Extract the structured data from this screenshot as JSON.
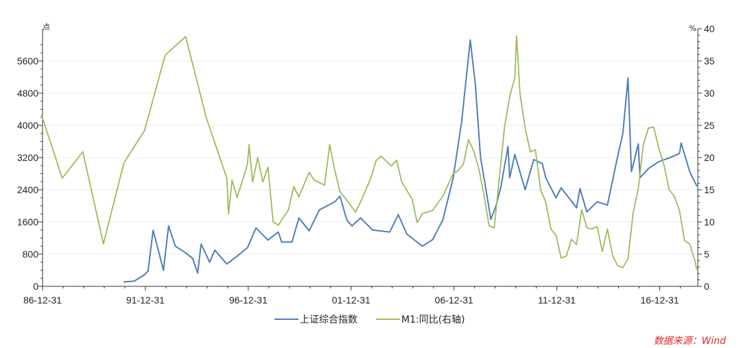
{
  "chart_data": {
    "type": "line",
    "x_axis": {
      "ticks": [
        "86-12-31",
        "91-12-31",
        "96-12-31",
        "01-12-31",
        "06-12-31",
        "11-12-31",
        "16-12-31"
      ]
    },
    "y_left": {
      "unit": "点",
      "range": [
        0,
        6400
      ],
      "ticks": [
        0,
        800,
        1600,
        2400,
        3200,
        4000,
        4800,
        5600
      ]
    },
    "y_right": {
      "unit": "%",
      "range": [
        0,
        40
      ],
      "ticks": [
        0,
        5,
        10,
        15,
        20,
        25,
        30,
        35,
        40
      ]
    },
    "grid": true,
    "legend_position": "bottom-center",
    "series": [
      {
        "name": "上证综合指数",
        "axis": "left",
        "color": "#4a7ebb",
        "points": [
          [
            "1990-12",
            110
          ],
          [
            "1991-06",
            130
          ],
          [
            "1991-12",
            290
          ],
          [
            "1992-02",
            380
          ],
          [
            "1992-05",
            1390
          ],
          [
            "1992-08",
            900
          ],
          [
            "1992-11",
            400
          ],
          [
            "1993-02",
            1500
          ],
          [
            "1993-06",
            1000
          ],
          [
            "1993-12",
            830
          ],
          [
            "1994-04",
            700
          ],
          [
            "1994-07",
            330
          ],
          [
            "1994-09",
            1050
          ],
          [
            "1995-02",
            600
          ],
          [
            "1995-05",
            900
          ],
          [
            "1995-12",
            555
          ],
          [
            "1996-06",
            750
          ],
          [
            "1996-12",
            960
          ],
          [
            "1997-05",
            1450
          ],
          [
            "1997-12",
            1150
          ],
          [
            "1998-06",
            1350
          ],
          [
            "1998-08",
            1100
          ],
          [
            "1999-02",
            1100
          ],
          [
            "1999-06",
            1700
          ],
          [
            "1999-12",
            1380
          ],
          [
            "2000-06",
            1900
          ],
          [
            "2001-03",
            2100
          ],
          [
            "2001-06",
            2240
          ],
          [
            "2001-10",
            1650
          ],
          [
            "2002-01",
            1500
          ],
          [
            "2002-06",
            1700
          ],
          [
            "2003-01",
            1400
          ],
          [
            "2003-11",
            1350
          ],
          [
            "2004-04",
            1780
          ],
          [
            "2004-09",
            1300
          ],
          [
            "2005-06",
            1000
          ],
          [
            "2005-12",
            1160
          ],
          [
            "2006-06",
            1650
          ],
          [
            "2006-12",
            2680
          ],
          [
            "2007-05",
            4100
          ],
          [
            "2007-10",
            6124
          ],
          [
            "2008-01",
            5000
          ],
          [
            "2008-04",
            3200
          ],
          [
            "2008-06",
            2700
          ],
          [
            "2008-10",
            1664
          ],
          [
            "2009-01",
            2000
          ],
          [
            "2009-04",
            2500
          ],
          [
            "2009-08",
            3478
          ],
          [
            "2009-09",
            2700
          ],
          [
            "2009-12",
            3280
          ],
          [
            "2010-06",
            2400
          ],
          [
            "2010-11",
            3150
          ],
          [
            "2011-04",
            3050
          ],
          [
            "2011-06",
            2700
          ],
          [
            "2011-12",
            2200
          ],
          [
            "2012-03",
            2450
          ],
          [
            "2012-12",
            1950
          ],
          [
            "2013-02",
            2430
          ],
          [
            "2013-06",
            1850
          ],
          [
            "2013-12",
            2100
          ],
          [
            "2014-06",
            2020
          ],
          [
            "2014-12",
            3234
          ],
          [
            "2015-03",
            3800
          ],
          [
            "2015-06",
            5178
          ],
          [
            "2015-08",
            2850
          ],
          [
            "2015-12",
            3540
          ],
          [
            "2016-01",
            2700
          ],
          [
            "2016-06",
            2930
          ],
          [
            "2016-12",
            3100
          ],
          [
            "2017-06",
            3190
          ],
          [
            "2017-12",
            3300
          ],
          [
            "2018-01",
            3559
          ],
          [
            "2018-06",
            2850
          ],
          [
            "2018-10",
            2500
          ]
        ]
      },
      {
        "name": "M1:同比(右轴)",
        "axis": "right",
        "color": "#9bbb59",
        "points": [
          [
            "1986-12",
            26.5
          ],
          [
            "1987-12",
            16.8
          ],
          [
            "1988-12",
            20.9
          ],
          [
            "1989-12",
            6.6
          ],
          [
            "1990-12",
            19.2
          ],
          [
            "1991-12",
            24.2
          ],
          [
            "1992-12",
            35.9
          ],
          [
            "1993-12",
            38.8
          ],
          [
            "1994-12",
            26.2
          ],
          [
            "1995-12",
            16.8
          ],
          [
            "1996-01",
            11.3
          ],
          [
            "1996-03",
            16.5
          ],
          [
            "1996-06",
            13.8
          ],
          [
            "1996-12",
            18.9
          ],
          [
            "1997-01",
            22.0
          ],
          [
            "1997-03",
            16.2
          ],
          [
            "1997-06",
            20.0
          ],
          [
            "1997-09",
            16.2
          ],
          [
            "1997-12",
            18.5
          ],
          [
            "1998-03",
            10.0
          ],
          [
            "1998-06",
            9.5
          ],
          [
            "1998-12",
            11.9
          ],
          [
            "1999-03",
            15.5
          ],
          [
            "1999-06",
            13.9
          ],
          [
            "1999-12",
            17.7
          ],
          [
            "2000-03",
            16.5
          ],
          [
            "2000-09",
            15.7
          ],
          [
            "2000-12",
            22.0
          ],
          [
            "2001-03",
            18.0
          ],
          [
            "2001-06",
            14.7
          ],
          [
            "2001-12",
            12.7
          ],
          [
            "2002-03",
            11.5
          ],
          [
            "2002-06",
            13.1
          ],
          [
            "2002-12",
            16.8
          ],
          [
            "2003-03",
            19.5
          ],
          [
            "2003-06",
            20.2
          ],
          [
            "2003-12",
            18.7
          ],
          [
            "2004-03",
            19.6
          ],
          [
            "2004-06",
            16.2
          ],
          [
            "2004-12",
            13.6
          ],
          [
            "2005-03",
            9.9
          ],
          [
            "2005-06",
            11.3
          ],
          [
            "2005-12",
            11.8
          ],
          [
            "2006-06",
            14.0
          ],
          [
            "2006-12",
            17.5
          ],
          [
            "2007-03",
            18.0
          ],
          [
            "2007-06",
            19.0
          ],
          [
            "2007-09",
            22.8
          ],
          [
            "2007-12",
            21.0
          ],
          [
            "2008-03",
            18.3
          ],
          [
            "2008-06",
            14.2
          ],
          [
            "2008-09",
            9.4
          ],
          [
            "2008-12",
            9.1
          ],
          [
            "2009-03",
            17.0
          ],
          [
            "2009-06",
            24.8
          ],
          [
            "2009-09",
            29.5
          ],
          [
            "2009-12",
            32.4
          ],
          [
            "2010-01",
            38.9
          ],
          [
            "2010-03",
            29.9
          ],
          [
            "2010-06",
            24.6
          ],
          [
            "2010-09",
            20.9
          ],
          [
            "2010-12",
            21.2
          ],
          [
            "2011-03",
            15.0
          ],
          [
            "2011-06",
            13.1
          ],
          [
            "2011-09",
            8.9
          ],
          [
            "2011-12",
            7.9
          ],
          [
            "2012-03",
            4.4
          ],
          [
            "2012-06",
            4.7
          ],
          [
            "2012-09",
            7.3
          ],
          [
            "2012-12",
            6.5
          ],
          [
            "2013-03",
            11.9
          ],
          [
            "2013-06",
            9.1
          ],
          [
            "2013-09",
            8.9
          ],
          [
            "2013-12",
            9.3
          ],
          [
            "2014-03",
            5.4
          ],
          [
            "2014-06",
            8.9
          ],
          [
            "2014-09",
            4.8
          ],
          [
            "2014-12",
            3.2
          ],
          [
            "2015-03",
            2.9
          ],
          [
            "2015-06",
            4.3
          ],
          [
            "2015-09",
            11.4
          ],
          [
            "2015-12",
            15.2
          ],
          [
            "2016-03",
            22.1
          ],
          [
            "2016-06",
            24.6
          ],
          [
            "2016-09",
            24.7
          ],
          [
            "2016-12",
            21.4
          ],
          [
            "2017-03",
            18.8
          ],
          [
            "2017-06",
            15.0
          ],
          [
            "2017-09",
            14.0
          ],
          [
            "2017-12",
            11.8
          ],
          [
            "2018-03",
            7.1
          ],
          [
            "2018-06",
            6.6
          ],
          [
            "2018-09",
            4.0
          ],
          [
            "2018-10",
            2.7
          ]
        ]
      }
    ]
  },
  "source_text": "数据来源：Wind"
}
